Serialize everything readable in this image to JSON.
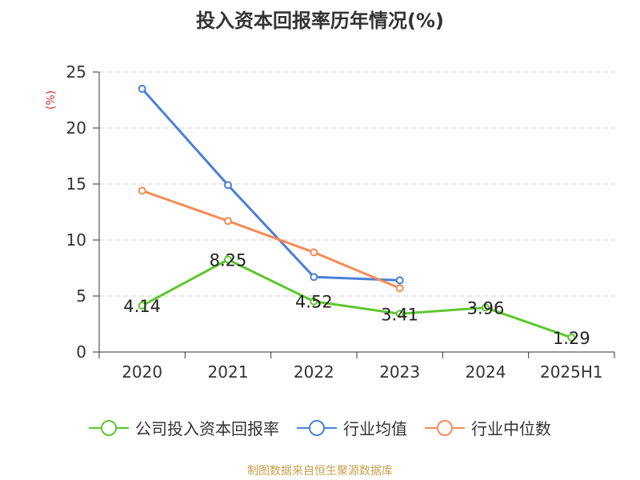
{
  "title": "投入资本回报率历年情况(%)",
  "source": "制图数据来自恒生聚源数据库",
  "chart_data": {
    "type": "line",
    "categories": [
      "2020",
      "2021",
      "2022",
      "2023",
      "2024",
      "2025H1"
    ],
    "ylim": [
      0,
      25
    ],
    "yticks": [
      0,
      5,
      10,
      15,
      20,
      25
    ],
    "ylabel": "(%)",
    "grid": true,
    "legend_position": "bottom",
    "series": [
      {
        "name": "公司投入资本回报率",
        "color": "#5ec62d",
        "values": [
          4.14,
          8.25,
          4.52,
          3.41,
          3.96,
          1.29
        ],
        "show_labels": true
      },
      {
        "name": "行业均值",
        "color": "#4a7fd9",
        "values": [
          23.5,
          14.9,
          6.7,
          6.4,
          null,
          null
        ],
        "show_labels": false
      },
      {
        "name": "行业中位数",
        "color": "#f68b57",
        "values": [
          14.4,
          11.7,
          8.9,
          5.7,
          null,
          null
        ],
        "show_labels": false
      }
    ],
    "point_labels": [
      "4.14",
      "8.25",
      "4.52",
      "3.41",
      "3.96",
      "1.29"
    ]
  }
}
